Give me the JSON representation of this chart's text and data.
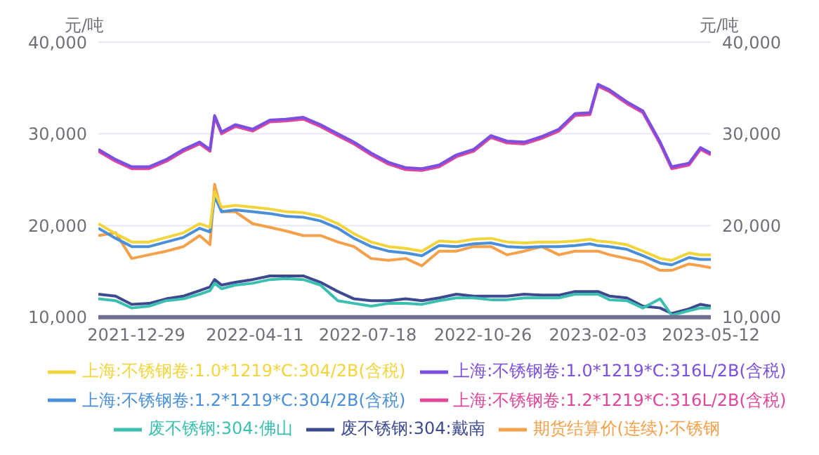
{
  "chart_data": {
    "type": "line",
    "ylabel": "元/吨",
    "y2label": "元/吨",
    "x": [
      "2021-11-26",
      "2021-12-11",
      "2021-12-25",
      "2022-01-09",
      "2022-01-24",
      "2022-02-08",
      "2022-02-22",
      "2022-03-03",
      "2022-03-07",
      "2022-03-13",
      "2022-03-25",
      "2022-04-09",
      "2022-04-24",
      "2022-05-08",
      "2022-05-23",
      "2022-06-07",
      "2022-06-22",
      "2022-07-06",
      "2022-07-21",
      "2022-08-05",
      "2022-08-20",
      "2022-09-03",
      "2022-09-18",
      "2022-10-03",
      "2022-10-18",
      "2022-11-02",
      "2022-11-16",
      "2022-12-01",
      "2022-12-16",
      "2022-12-31",
      "2023-01-14",
      "2023-01-27",
      "2023-02-03",
      "2023-02-13",
      "2023-02-28",
      "2023-03-14",
      "2023-03-29",
      "2023-04-08",
      "2023-04-23",
      "2023-05-03",
      "2023-05-12"
    ],
    "series": [
      {
        "name": "废不锈钢:304:戴南",
        "color": "#3d4a8f",
        "values": [
          12500,
          12300,
          11400,
          11500,
          12000,
          12300,
          12900,
          13300,
          14100,
          13500,
          13800,
          14100,
          14500,
          14500,
          14500,
          13800,
          12800,
          12000,
          11800,
          11800,
          12000,
          11800,
          12100,
          12500,
          12300,
          12300,
          12300,
          12500,
          12400,
          12400,
          12800,
          12800,
          12800,
          12300,
          12100,
          11200,
          11000,
          10400,
          10900,
          11400,
          11200
        ]
      },
      {
        "name": "废不锈钢:304:佛山",
        "color": "#3bbfb0",
        "values": [
          12000,
          11800,
          11000,
          11200,
          11800,
          12000,
          12500,
          12900,
          13700,
          13100,
          13500,
          13700,
          14100,
          14200,
          14100,
          13500,
          11800,
          11500,
          11200,
          11500,
          11500,
          11400,
          11800,
          12100,
          12100,
          11900,
          11900,
          12100,
          12100,
          12100,
          12500,
          12500,
          12500,
          11900,
          11800,
          11000,
          12000,
          10200,
          10700,
          11000,
          11000
        ]
      },
      {
        "name": "期货结算价(连续):不锈钢",
        "color": "#f5a04a",
        "values": [
          18900,
          19200,
          16400,
          16800,
          17200,
          17700,
          18900,
          17900,
          24500,
          21500,
          21500,
          20200,
          19800,
          19400,
          18900,
          18900,
          18200,
          17700,
          16400,
          16200,
          16400,
          15600,
          17200,
          17200,
          17700,
          17700,
          16800,
          17200,
          17700,
          16800,
          17200,
          17200,
          17200,
          16800,
          16400,
          16000,
          15100,
          15100,
          15800,
          15600,
          15400
        ]
      },
      {
        "name": "上海:不锈钢卷:1.2*1219*C:304/2B(含税)",
        "color": "#4a8fd9",
        "values": [
          19700,
          18600,
          17700,
          17700,
          18200,
          18700,
          19700,
          19300,
          23200,
          21500,
          21700,
          21500,
          21300,
          21000,
          20900,
          20500,
          19700,
          18600,
          17700,
          17200,
          17000,
          16700,
          17800,
          17700,
          18000,
          18100,
          17700,
          17600,
          17700,
          17700,
          17800,
          18000,
          17800,
          17700,
          17400,
          16700,
          15900,
          15700,
          16500,
          16300,
          16300
        ]
      },
      {
        "name": "上海:不锈钢卷:1.2*1219*C:316L/2B(含税)",
        "color": "#e0479a",
        "values": [
          28100,
          27000,
          26200,
          26200,
          27000,
          28100,
          28900,
          28100,
          31800,
          30000,
          30800,
          30300,
          31300,
          31400,
          31600,
          30800,
          29800,
          28900,
          27700,
          26700,
          26100,
          26000,
          26400,
          27500,
          28100,
          29600,
          29000,
          28900,
          29500,
          30300,
          32000,
          32100,
          35200,
          34600,
          33300,
          32300,
          28900,
          26200,
          26600,
          28300,
          27700
        ]
      },
      {
        "name": "上海:不锈钢卷:1.0*1219*C:304/2B(含税)",
        "color": "#f2d43c",
        "values": [
          20200,
          19100,
          18200,
          18200,
          18700,
          19200,
          20200,
          19800,
          23700,
          22000,
          22200,
          22000,
          21800,
          21500,
          21400,
          21000,
          20200,
          19100,
          18200,
          17700,
          17500,
          17200,
          18300,
          18200,
          18500,
          18600,
          18200,
          18100,
          18200,
          18200,
          18300,
          18500,
          18300,
          18200,
          17900,
          17200,
          16400,
          16200,
          17000,
          16800,
          16800
        ]
      },
      {
        "name": "上海:不锈钢卷:1.0*1219*C:316L/2B(含税)",
        "color": "#7b4fe0",
        "values": [
          28300,
          27200,
          26400,
          26400,
          27200,
          28300,
          29100,
          28300,
          32000,
          30200,
          31000,
          30500,
          31500,
          31600,
          31800,
          31000,
          30000,
          29100,
          27900,
          26900,
          26300,
          26200,
          26600,
          27700,
          28300,
          29800,
          29200,
          29100,
          29700,
          30500,
          32200,
          32300,
          35400,
          34800,
          33500,
          32500,
          29100,
          26400,
          26800,
          28500,
          27900
        ]
      }
    ],
    "xlim": [
      "2021-11-26",
      "2023-05-12"
    ],
    "xticks": [
      "2021-12-29",
      "2022-04-11",
      "2022-07-18",
      "2022-10-26",
      "2023-02-03",
      "2023-05-12"
    ],
    "ylim": [
      10000,
      40000
    ],
    "yticks": [
      {
        "value": 10000,
        "label": "10,000"
      },
      {
        "value": 20000,
        "label": "20,000"
      },
      {
        "value": 30000,
        "label": "30,000"
      },
      {
        "value": 40000,
        "label": "40,000"
      }
    ],
    "y2lim": [
      10000,
      40000
    ],
    "y2ticks": [
      {
        "value": 10000,
        "label": "10,000"
      },
      {
        "value": 20000,
        "label": "20,000"
      },
      {
        "value": 30000,
        "label": "30,000"
      },
      {
        "value": 40000,
        "label": "40,000"
      }
    ],
    "grid": "y",
    "legend": "bottom"
  }
}
